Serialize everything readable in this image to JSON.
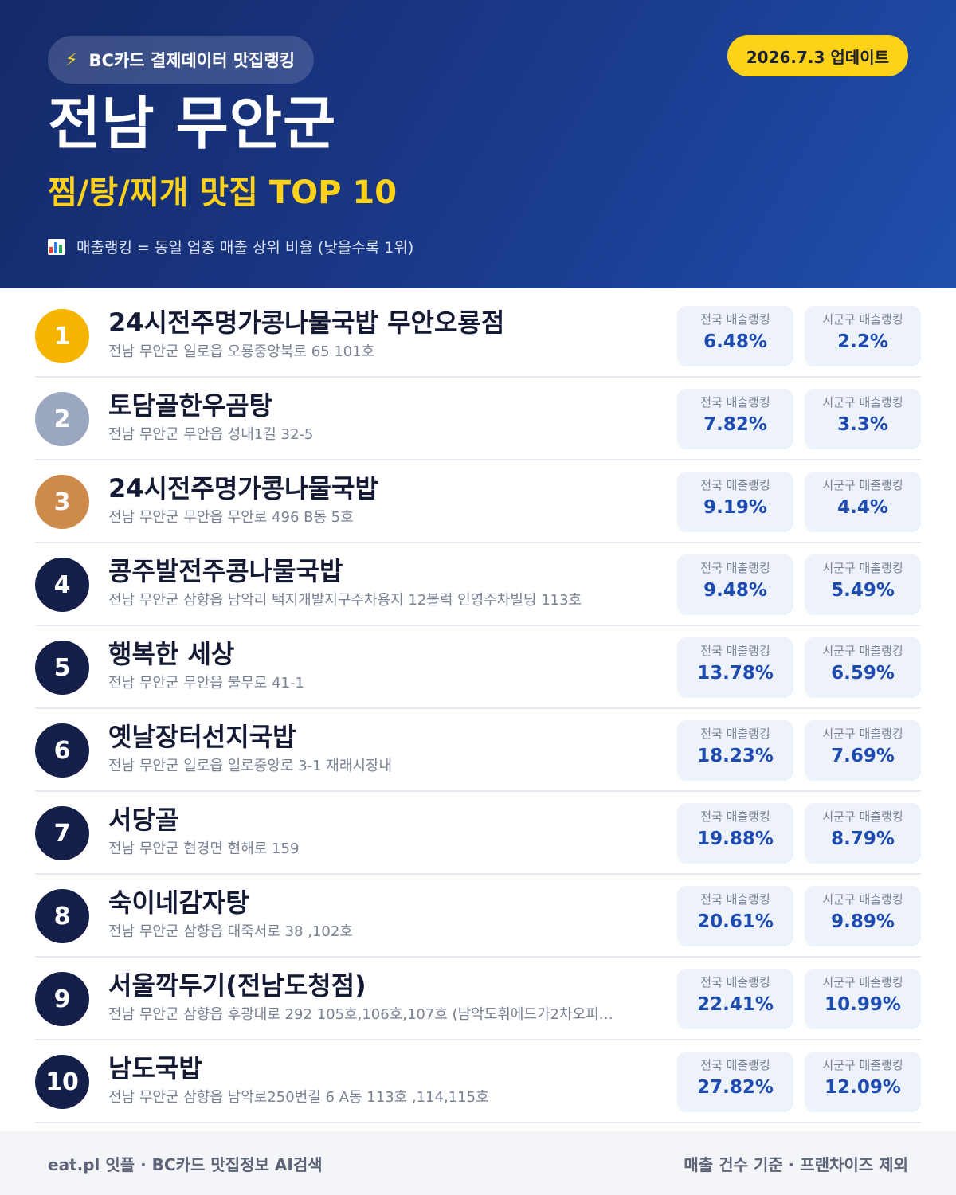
{
  "header": {
    "badge_label": "BC카드 결제데이터 맛집랭킹",
    "badge_icon": "lightning-bolt-icon",
    "update_label": "2026.7.3 업데이트",
    "title": "전남 무안군",
    "subtitle": "찜/탕/찌개 맛집 TOP 10",
    "note_icon": "bar-chart-icon",
    "note": "매출랭킹 = 동일 업종 매출 상위 비율 (낮을수록 1위)"
  },
  "colors": {
    "header_bg": "#1a3a8c",
    "accent_yellow": "#ffd21a",
    "rank_gold": "#f4b400",
    "rank_silver": "#9aa7bf",
    "rank_bronze": "#cd8a4b",
    "rank_default": "#141f4a",
    "stat_value": "#1e4bb0"
  },
  "stat_labels": {
    "national": "전국 매출랭킹",
    "local": "시군구 매출랭킹"
  },
  "restaurants": [
    {
      "rank": "1",
      "name": "24시전주명가콩나물국밥 무안오룡점",
      "address": "전남 무안군 일로읍 오룡중앙북로 65 101호",
      "national": "6.48%",
      "local": "2.2%"
    },
    {
      "rank": "2",
      "name": "토담골한우곰탕",
      "address": "전남 무안군 무안읍 성내1길 32-5",
      "national": "7.82%",
      "local": "3.3%"
    },
    {
      "rank": "3",
      "name": "24시전주명가콩나물국밥",
      "address": "전남 무안군 무안읍 무안로 496 B동 5호",
      "national": "9.19%",
      "local": "4.4%"
    },
    {
      "rank": "4",
      "name": "콩주발전주콩나물국밥",
      "address": "전남 무안군 삼향읍 남악리 택지개발지구주차용지 12블럭 인영주차빌딩 113호",
      "national": "9.48%",
      "local": "5.49%"
    },
    {
      "rank": "5",
      "name": "행복한 세상",
      "address": "전남 무안군 무안읍 불무로 41-1",
      "national": "13.78%",
      "local": "6.59%"
    },
    {
      "rank": "6",
      "name": "옛날장터선지국밥",
      "address": "전남 무안군 일로읍 일로중앙로 3-1 재래시장내",
      "national": "18.23%",
      "local": "7.69%"
    },
    {
      "rank": "7",
      "name": "서당골",
      "address": "전남 무안군 현경면 현해로 159",
      "national": "19.88%",
      "local": "8.79%"
    },
    {
      "rank": "8",
      "name": "숙이네감자탕",
      "address": "전남 무안군 삼향읍 대죽서로 38 ,102호",
      "national": "20.61%",
      "local": "9.89%"
    },
    {
      "rank": "9",
      "name": "서울깍두기(전남도청점)",
      "address": "전남 무안군 삼향읍 후광대로 292 105호,106호,107호 (남악도휘에드가2차오피…",
      "national": "22.41%",
      "local": "10.99%"
    },
    {
      "rank": "10",
      "name": "남도국밥",
      "address": "전남 무안군 삼향읍 남악로250번길 6 A동 113호 ,114,115호",
      "national": "27.82%",
      "local": "12.09%"
    }
  ],
  "footer": {
    "left": "eat.pl 잇플 · BC카드 맛집정보 AI검색",
    "right": "매출 건수 기준 · 프랜차이즈 제외"
  }
}
